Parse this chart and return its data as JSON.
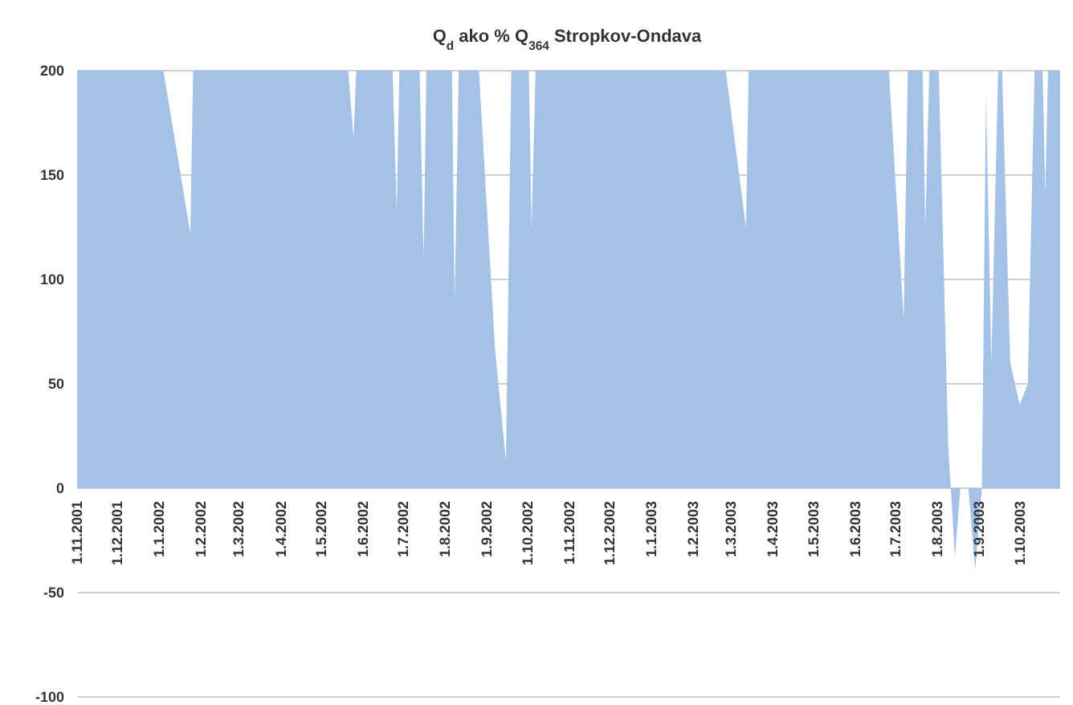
{
  "chart_data": {
    "type": "area",
    "title": "Q$_{d}$ ako % Q$_{364}$ Stropkov-Ondava",
    "x": [
      "2001-11-01",
      "2002-01-04",
      "2002-01-24",
      "2002-01-26",
      "2002-05-21",
      "2002-05-25",
      "2002-05-27",
      "2002-06-23",
      "2002-06-26",
      "2002-06-28",
      "2002-07-13",
      "2002-07-16",
      "2002-07-18",
      "2002-08-06",
      "2002-08-08",
      "2002-08-11",
      "2002-08-26",
      "2002-09-07",
      "2002-09-15",
      "2002-09-19",
      "2002-10-02",
      "2002-10-04",
      "2002-10-07",
      "2003-02-25",
      "2003-03-12",
      "2003-03-14",
      "2003-06-26",
      "2003-07-07",
      "2003-07-10",
      "2003-07-21",
      "2003-07-23",
      "2003-07-26",
      "2003-08-02",
      "2003-08-09",
      "2003-08-14",
      "2003-08-18",
      "2003-08-24",
      "2003-08-29",
      "2003-09-03",
      "2003-09-06",
      "2003-09-10",
      "2003-09-15",
      "2003-09-18",
      "2003-09-24",
      "2003-10-01",
      "2003-10-07",
      "2003-10-12",
      "2003-10-18",
      "2003-10-20",
      "2003-10-22",
      "2003-10-31"
    ],
    "series": [
      {
        "color": "#a4c2e6",
        "values": [
          200,
          200,
          122,
          200,
          200,
          168,
          200,
          200,
          133,
          200,
          200,
          110,
          200,
          200,
          89,
          200,
          200,
          66,
          13,
          200,
          200,
          125,
          200,
          200,
          125,
          200,
          200,
          81,
          200,
          200,
          125,
          200,
          200,
          20,
          -33,
          0,
          0,
          -39,
          0,
          188,
          60,
          200,
          200,
          60,
          40,
          50,
          200,
          200,
          141,
          200,
          200
        ]
      }
    ],
    "xlim": [
      "2001-11-01",
      "2003-10-31"
    ],
    "xticks": [
      {
        "value": "2001-11-01",
        "label": "1.11.2001"
      },
      {
        "value": "2001-12-01",
        "label": "1.12.2001"
      },
      {
        "value": "2002-01-01",
        "label": "1.1.2002"
      },
      {
        "value": "2002-02-01",
        "label": "1.2.2002"
      },
      {
        "value": "2002-03-01",
        "label": "1.3.2002"
      },
      {
        "value": "2002-04-01",
        "label": "1.4.2002"
      },
      {
        "value": "2002-05-01",
        "label": "1.5.2002"
      },
      {
        "value": "2002-06-01",
        "label": "1.6.2002"
      },
      {
        "value": "2002-07-01",
        "label": "1.7.2002"
      },
      {
        "value": "2002-08-01",
        "label": "1.8.2002"
      },
      {
        "value": "2002-09-01",
        "label": "1.9.2002"
      },
      {
        "value": "2002-10-01",
        "label": "1.10.2002"
      },
      {
        "value": "2002-11-01",
        "label": "1.11.2002"
      },
      {
        "value": "2002-12-01",
        "label": "1.12.2002"
      },
      {
        "value": "2003-01-01",
        "label": "1.1.2003"
      },
      {
        "value": "2003-02-01",
        "label": "1.2.2003"
      },
      {
        "value": "2003-03-01",
        "label": "1.3.2003"
      },
      {
        "value": "2003-04-01",
        "label": "1.4.2003"
      },
      {
        "value": "2003-05-01",
        "label": "1.5.2003"
      },
      {
        "value": "2003-06-01",
        "label": "1.6.2003"
      },
      {
        "value": "2003-07-01",
        "label": "1.7.2003"
      },
      {
        "value": "2003-08-01",
        "label": "1.8.2003"
      },
      {
        "value": "2003-09-01",
        "label": "1.9.2003"
      },
      {
        "value": "2003-10-01",
        "label": "1.10.2003"
      }
    ],
    "ylim": [
      -100,
      200
    ],
    "yticks": [
      -100,
      -50,
      0,
      50,
      100,
      150,
      200
    ],
    "grid": "y"
  }
}
